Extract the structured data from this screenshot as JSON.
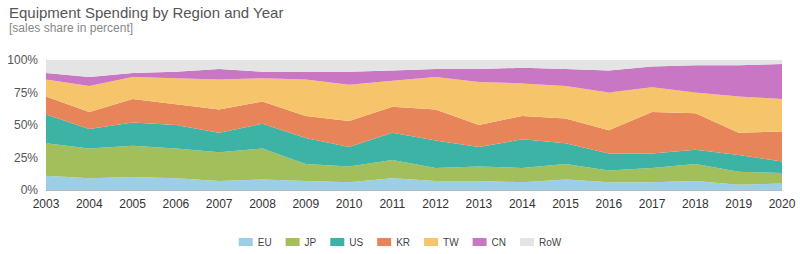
{
  "chart_data": {
    "type": "area",
    "title": "Equipment Spending by Region and Year",
    "subtitle": "[sales share in percent]",
    "categories": [
      "2003",
      "2004",
      "2005",
      "2006",
      "2007",
      "2008",
      "2009",
      "2010",
      "2011",
      "2012",
      "2013",
      "2014",
      "2015",
      "2016",
      "2017",
      "2018",
      "2019",
      "2020"
    ],
    "series": [
      {
        "name": "EU",
        "color": "#9ccfe6",
        "values": [
          11,
          9,
          10,
          9,
          7,
          8,
          7,
          6,
          9,
          7,
          7,
          6,
          8,
          6,
          6,
          7,
          4,
          5
        ]
      },
      {
        "name": "JP",
        "color": "#a3bf5c",
        "values": [
          25,
          23,
          24,
          23,
          22,
          24,
          13,
          12,
          14,
          10,
          11,
          11,
          12,
          9,
          11,
          13,
          10,
          8
        ]
      },
      {
        "name": "US",
        "color": "#3db3a6",
        "values": [
          22,
          15,
          18,
          18,
          15,
          19,
          20,
          15,
          21,
          21,
          15,
          22,
          16,
          13,
          11,
          11,
          13,
          9
        ]
      },
      {
        "name": "KR",
        "color": "#e8845a",
        "values": [
          14,
          13,
          18,
          16,
          18,
          17,
          17,
          20,
          20,
          24,
          17,
          18,
          19,
          18,
          32,
          28,
          17,
          23
        ]
      },
      {
        "name": "TW",
        "color": "#f6c56b",
        "values": [
          13,
          20,
          17,
          20,
          23,
          18,
          28,
          28,
          20,
          25,
          33,
          25,
          25,
          29,
          19,
          16,
          28,
          25
        ]
      },
      {
        "name": "CN",
        "color": "#c977c4",
        "values": [
          5,
          7,
          3,
          5,
          8,
          5,
          6,
          10,
          8,
          6,
          10,
          12,
          13,
          17,
          16,
          21,
          24,
          27
        ]
      },
      {
        "name": "RoW",
        "color": "#e4e4e4",
        "values": [
          10,
          13,
          10,
          9,
          7,
          9,
          9,
          9,
          8,
          7,
          7,
          6,
          7,
          8,
          5,
          4,
          4,
          3
        ]
      }
    ],
    "stacked": true,
    "ylim": [
      0,
      100
    ],
    "yticks": [
      {
        "value": 0,
        "label": "0%"
      },
      {
        "value": 25,
        "label": "25%"
      },
      {
        "value": 50,
        "label": "50%"
      },
      {
        "value": 75,
        "label": "75%"
      },
      {
        "value": 100,
        "label": "100%"
      }
    ],
    "grid": true,
    "legend": "bottom"
  }
}
